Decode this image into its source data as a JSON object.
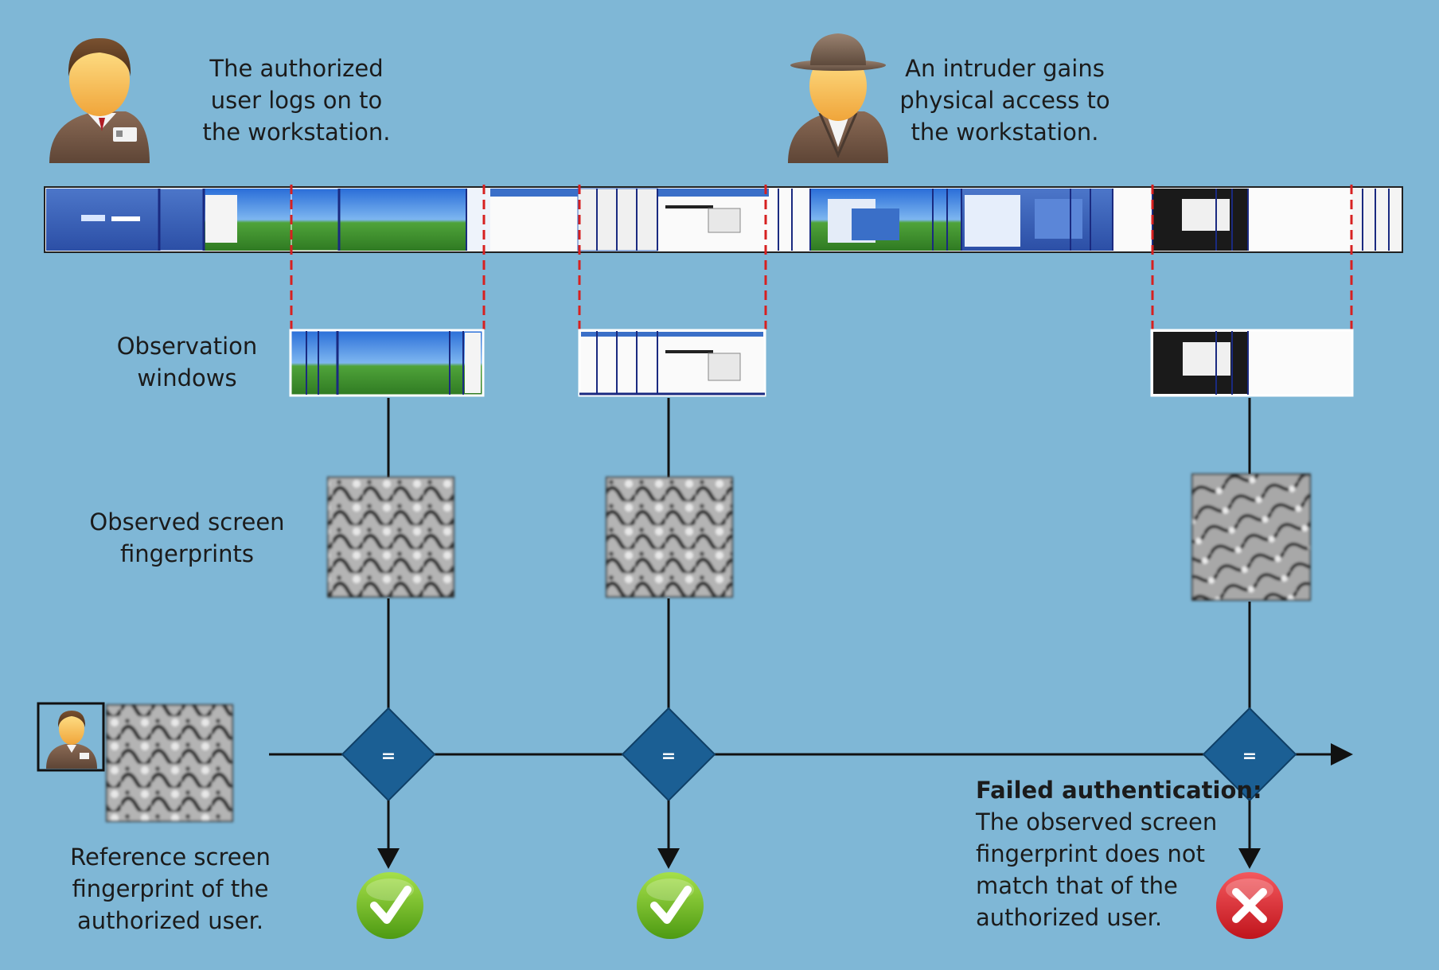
{
  "labels": {
    "authorized_logon": [
      "The authorized",
      "user logs on to",
      "the workstation."
    ],
    "intruder_access": [
      "An intruder gains",
      "physical access to",
      "the workstation."
    ],
    "observation_windows": [
      "Observation",
      "windows"
    ],
    "observed_fingerprints": [
      "Observed screen",
      "fingerprints"
    ],
    "reference_fingerprint": [
      "Reference screen",
      "fingerprint of the",
      "authorized user."
    ]
  },
  "failure_note": {
    "title": "Failed authentication:",
    "lines": [
      "The observed screen",
      "fingerprint does not",
      "match that of the",
      "authorized user."
    ]
  },
  "comparisons": [
    {
      "symbol": "=",
      "result": "match",
      "result_icon": "green-check-icon"
    },
    {
      "symbol": "=",
      "result": "match",
      "result_icon": "green-check-icon"
    },
    {
      "symbol": "=",
      "result": "mismatch",
      "result_icon": "red-x-icon"
    }
  ],
  "colors": {
    "background": "#7fb7d6",
    "diamond": "#1b5f94",
    "dashed_bracket": "#d72020",
    "match": "#7cbf1e",
    "mismatch": "#d8222a",
    "line": "#111111"
  },
  "icons": [
    "authorized-user-icon",
    "intruder-icon",
    "screenshot-timeline",
    "fingerprint-image",
    "flow-arrow"
  ]
}
